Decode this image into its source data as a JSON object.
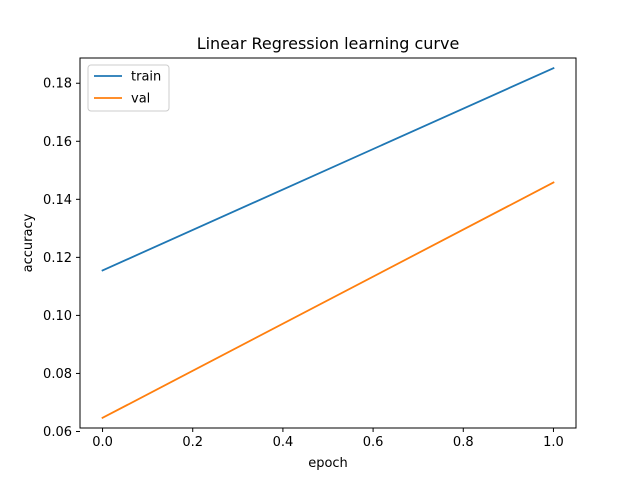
{
  "chart_data": {
    "type": "line",
    "title": "Linear Regression learning curve",
    "xlabel": "epoch",
    "ylabel": "accuracy",
    "xlim": [
      -0.05,
      1.05
    ],
    "ylim": [
      0.0612,
      0.1887
    ],
    "xticks": [
      0.0,
      0.2,
      0.4,
      0.6,
      0.8,
      1.0
    ],
    "xtick_labels": [
      "0.0",
      "0.2",
      "0.4",
      "0.6",
      "0.8",
      "1.0"
    ],
    "yticks": [
      0.06,
      0.08,
      0.1,
      0.12,
      0.14,
      0.16,
      0.18
    ],
    "ytick_labels": [
      "0.06",
      "0.08",
      "0.10",
      "0.12",
      "0.14",
      "0.16",
      "0.18"
    ],
    "grid": false,
    "legend_position": "top-left",
    "series": [
      {
        "name": "train",
        "color": "#1f77b4",
        "x": [
          0.0,
          1.0
        ],
        "y": [
          0.1155,
          0.1852
        ]
      },
      {
        "name": "val",
        "color": "#ff7f0e",
        "x": [
          0.0,
          1.0
        ],
        "y": [
          0.0647,
          0.1458
        ]
      }
    ]
  }
}
